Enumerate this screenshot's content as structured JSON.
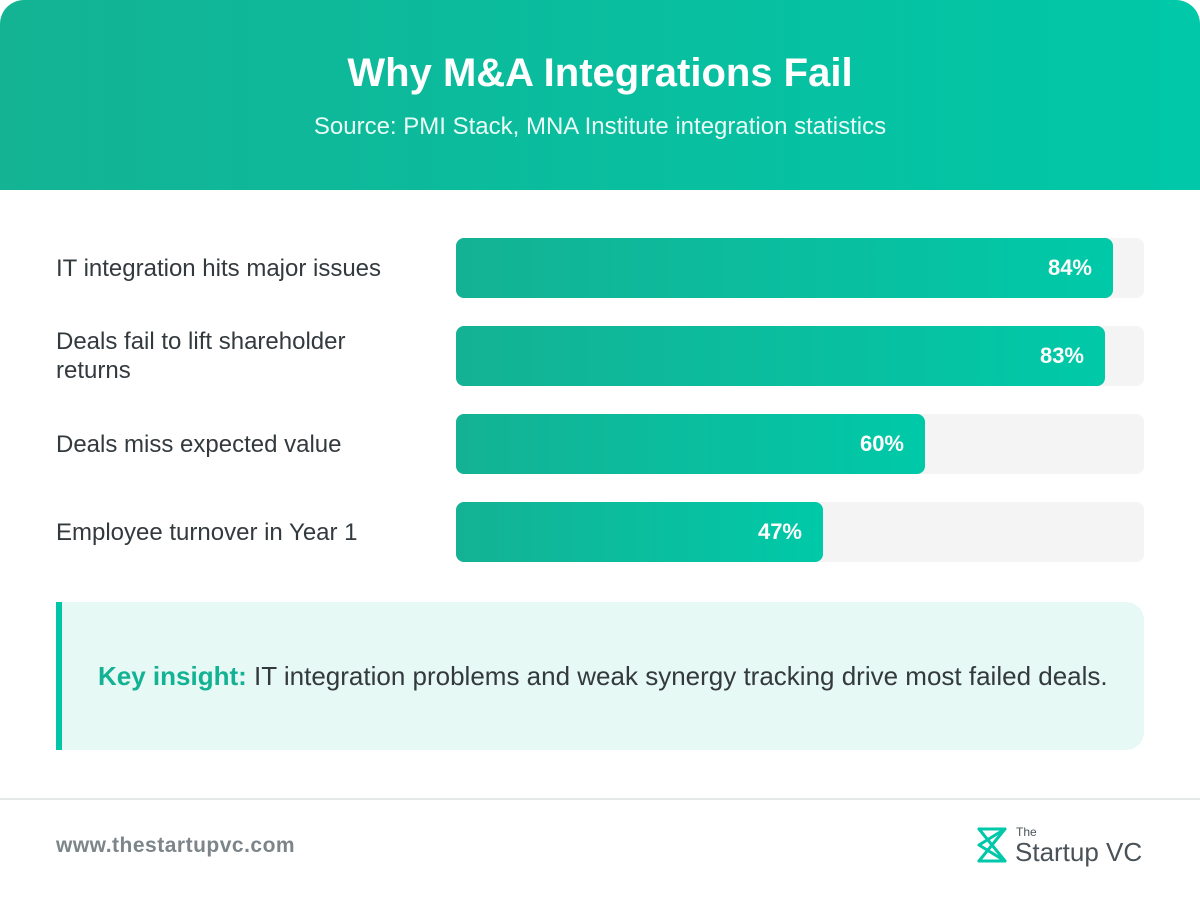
{
  "header": {
    "title": "Why M&A Integrations Fail",
    "subtitle": "Source: PMI Stack, MNA Institute integration statistics"
  },
  "colors": {
    "accent": "#00c8a8",
    "accent_dark": "#13b394",
    "track": "#f4f4f4",
    "insight_bg": "#e6f9f4"
  },
  "chart_data": {
    "type": "bar",
    "orientation": "horizontal",
    "categories": [
      "IT integration hits major issues",
      "Deals fail to lift shareholder returns",
      "Deals miss expected value",
      "Employee turnover in Year 1"
    ],
    "values": [
      84,
      83,
      60,
      47
    ],
    "value_labels": [
      "84%",
      "83%",
      "60%",
      "47%"
    ],
    "unit": "%",
    "xlim": [
      0,
      88
    ],
    "title": "Why M&A Integrations Fail",
    "subtitle": "Source: PMI Stack, MNA Institute integration statistics",
    "grid": false,
    "legend": "none"
  },
  "insight": {
    "key_label": "Key insight:",
    "text": " IT integration problems and weak synergy tracking drive most failed deals."
  },
  "footer": {
    "url": "www.thestartupvc.com",
    "logo_the": "The",
    "logo_name": "Startup VC",
    "logo_icon": "startupvc-logo-icon"
  }
}
